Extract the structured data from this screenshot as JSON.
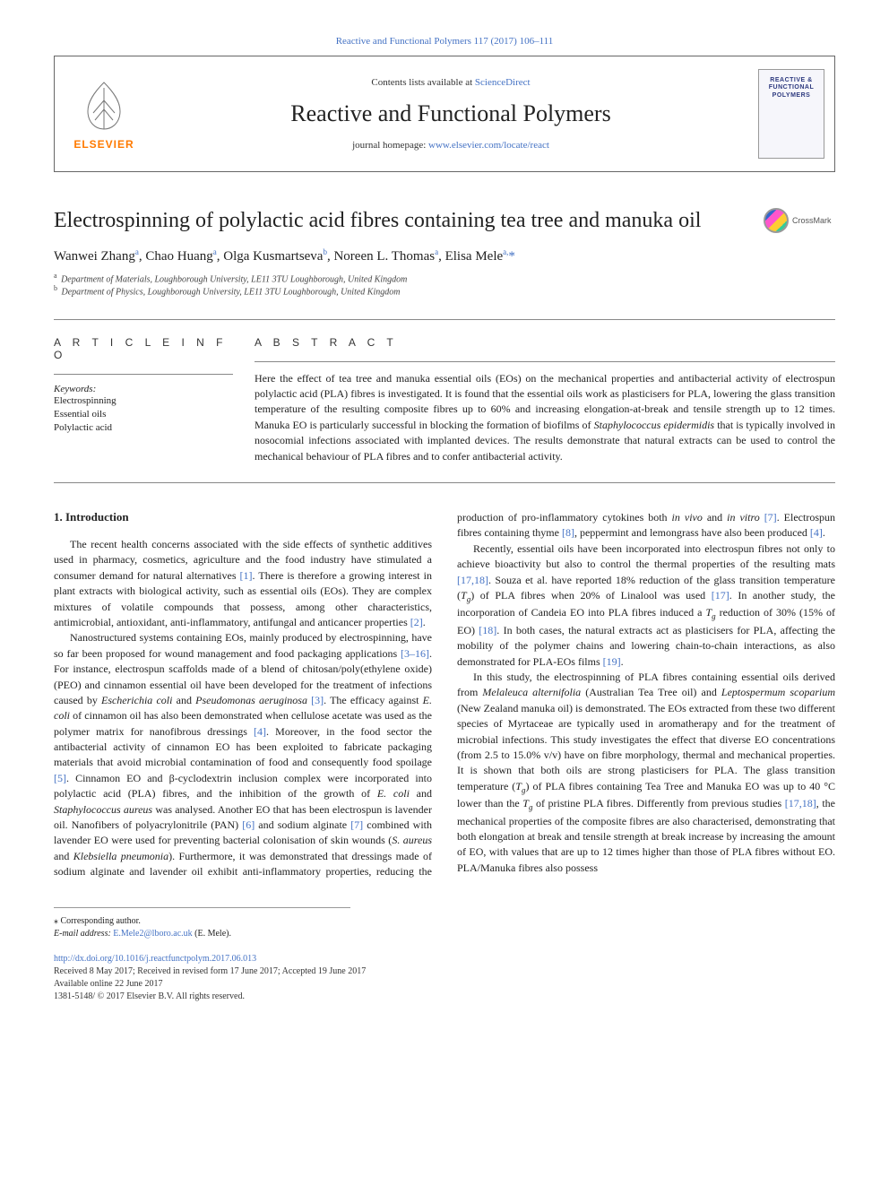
{
  "breadcrumb": {
    "journal": "Reactive and Functional Polymers",
    "issue": "117 (2017) 106–111"
  },
  "header": {
    "contents_prefix": "Contents lists available at ",
    "contents_link": "ScienceDirect",
    "journal_title": "Reactive and Functional Polymers",
    "homepage_prefix": "journal homepage: ",
    "homepage_link": "www.elsevier.com/locate/react",
    "publisher_word": "ELSEVIER",
    "cover_line1": "REACTIVE &",
    "cover_line2": "FUNCTIONAL",
    "cover_line3": "POLYMERS"
  },
  "crossmark_label": "CrossMark",
  "paper": {
    "title": "Electrospinning of polylactic acid fibres containing tea tree and manuka oil",
    "authors_html": "Wanwei Zhang<sup>a</sup>, Chao Huang<sup>a</sup>, Olga Kusmartseva<sup>b</sup>, Noreen L. Thomas<sup>a</sup>, Elisa Mele<sup>a,</sup><span class='star'>*</span>",
    "affiliations": [
      {
        "marker": "a",
        "text": "Department of Materials, Loughborough University, LE11 3TU Loughborough, United Kingdom"
      },
      {
        "marker": "b",
        "text": "Department of Physics, Loughborough University, LE11 3TU Loughborough, United Kingdom"
      }
    ]
  },
  "info_head": "A R T I C L E  I N F O",
  "abstract_head": "A B S T R A C T",
  "keywords_label": "Keywords:",
  "keywords": [
    "Electrospinning",
    "Essential oils",
    "Polylactic acid"
  ],
  "abstract": "Here the effect of tea tree and manuka essential oils (EOs) on the mechanical properties and antibacterial activity of electrospun polylactic acid (PLA) fibres is investigated. It is found that the essential oils work as plasticisers for PLA, lowering the glass transition temperature of the resulting composite fibres up to 60% and increasing elongation-at-break and tensile strength up to 12 times. Manuka EO is particularly successful in blocking the formation of biofilms of <em>Staphylococcus epidermidis</em> that is typically involved in nosocomial infections associated with implanted devices. The results demonstrate that natural extracts can be used to control the mechanical behaviour of PLA fibres and to confer antibacterial activity.",
  "section1_heading": "1. Introduction",
  "para1": "The recent health concerns associated with the side effects of synthetic additives used in pharmacy, cosmetics, agriculture and the food industry have stimulated a consumer demand for natural alternatives <span class='ref'>[1]</span>. There is therefore a growing interest in plant extracts with biological activity, such as essential oils (EOs). They are complex mixtures of volatile compounds that possess, among other characteristics, antimicrobial, antioxidant, anti-inflammatory, antifungal and anticancer properties <span class='ref'>[2]</span>.",
  "para2": "Nanostructured systems containing EOs, mainly produced by electrospinning, have so far been proposed for wound management and food packaging applications <span class='ref'>[3–16]</span>. For instance, electrospun scaffolds made of a blend of chitosan/poly(ethylene oxide) (PEO) and cinnamon essential oil have been developed for the treatment of infections caused by <em>Escherichia coli</em> and <em>Pseudomonas aeruginosa</em> <span class='ref'>[3]</span>. The efficacy against <em>E. coli</em> of cinnamon oil has also been demonstrated when cellulose acetate was used as the polymer matrix for nanofibrous dressings <span class='ref'>[4]</span>. Moreover, in the food sector the antibacterial activity of cinnamon EO has been exploited to fabricate packaging materials that avoid microbial contamination of food and consequently food spoilage <span class='ref'>[5]</span>. Cinnamon EO and β-cyclodextrin inclusion complex were incorporated into polylactic acid (PLA) fibres, and the inhibition of the growth of <em>E. coli</em> and <em>Staphylococcus aureus</em> was analysed. Another EO that has been electrospun is lavender oil. Nanofibers of polyacrylonitrile (PAN) <span class='ref'>[6]</span> and sodium alginate <span class='ref'>[7]</span> combined with lavender EO were used for preventing bacterial colonisation of skin wounds (<em>S. aureus</em> and <em>Klebsiella pneumonia</em>). Furthermore, it was demonstrated that dressings made of sodium alginate and lavender oil exhibit anti-inflammatory properties, reducing the production of pro-inflammatory cytokines both <em>in vivo</em> and <em>in vitro</em> <span class='ref'>[7]</span>. Electrospun fibres containing thyme <span class='ref'>[8]</span>, peppermint and lemongrass have also been produced <span class='ref'>[4]</span>.",
  "para3": "Recently, essential oils have been incorporated into electrospun fibres not only to achieve bioactivity but also to control the thermal properties of the resulting mats <span class='ref'>[17,18]</span>. Souza et al. have reported 18% reduction of the glass transition temperature (<em>T<sub>g</sub></em>) of PLA fibres when 20% of Linalool was used <span class='ref'>[17]</span>. In another study, the incorporation of Candeia EO into PLA fibres induced a <em>T<sub>g</sub></em> reduction of 30% (15% of EO) <span class='ref'>[18]</span>. In both cases, the natural extracts act as plasticisers for PLA, affecting the mobility of the polymer chains and lowering chain-to-chain interactions, as also demonstrated for PLA-EOs films <span class='ref'>[19]</span>.",
  "para4": "In this study, the electrospinning of PLA fibres containing essential oils derived from <em>Melaleuca alternifolia</em> (Australian Tea Tree oil) and <em>Leptospermum scoparium</em> (New Zealand manuka oil) is demonstrated. The EOs extracted from these two different species of Myrtaceae are typically used in aromatherapy and for the treatment of microbial infections. This study investigates the effect that diverse EO concentrations (from 2.5 to 15.0% v/v) have on fibre morphology, thermal and mechanical properties. It is shown that both oils are strong plasticisers for PLA. The glass transition temperature (<em>T<sub>g</sub></em>) of PLA fibres containing Tea Tree and Manuka EO was up to 40 °C lower than the <em>T<sub>g</sub></em> of pristine PLA fibres. Differently from previous studies <span class='ref'>[17,18]</span>, the mechanical properties of the composite fibres are also characterised, demonstrating that both elongation at break and tensile strength at break increase by increasing the amount of EO, with values that are up to 12 times higher than those of PLA fibres without EO. PLA/Manuka fibres also possess",
  "footer": {
    "corr_label": "Corresponding author.",
    "email_label": "E-mail address:",
    "email": "E.Mele2@lboro.ac.uk",
    "email_tail": "(E. Mele).",
    "doi": "http://dx.doi.org/10.1016/j.reactfunctpolym.2017.06.013",
    "received": "Received 8 May 2017; Received in revised form 17 June 2017; Accepted 19 June 2017",
    "available": "Available online 22 June 2017",
    "copyright": "1381-5148/ © 2017 Elsevier B.V. All rights reserved."
  }
}
